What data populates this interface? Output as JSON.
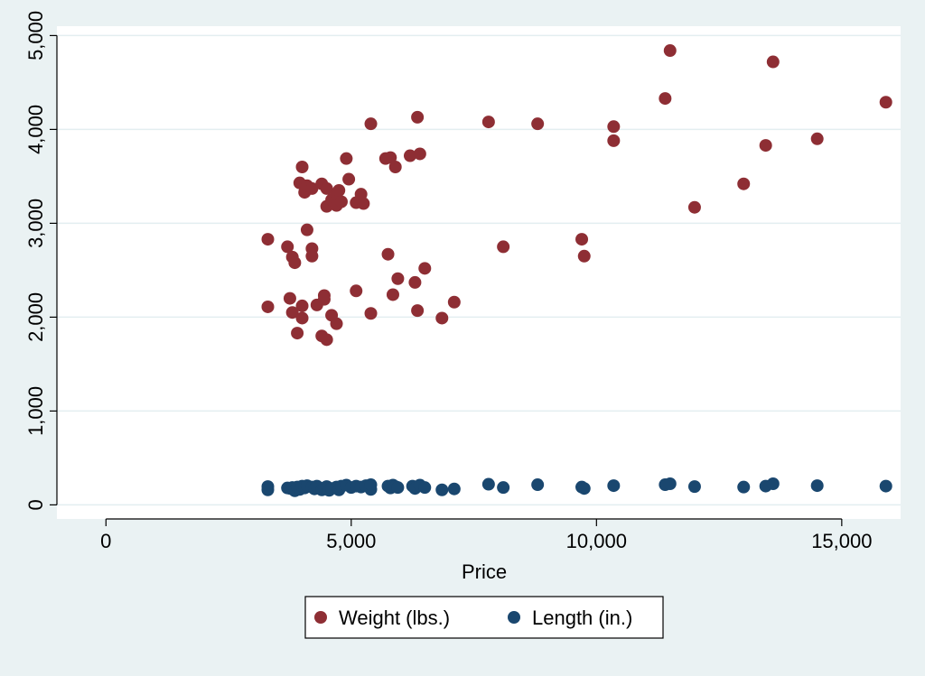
{
  "chart_data": {
    "type": "scatter",
    "title": "",
    "xlabel": "Price",
    "ylabel": "",
    "xlim": [
      -1000,
      16200
    ],
    "ylim": [
      -150,
      5100
    ],
    "x_ticks": [
      0,
      5000,
      10000,
      15000
    ],
    "x_tick_labels": [
      "0",
      "5,000",
      "10,000",
      "15,000"
    ],
    "y_ticks": [
      0,
      1000,
      2000,
      3000,
      4000,
      5000
    ],
    "y_tick_labels": [
      "0",
      "1,000",
      "2,000",
      "3,000",
      "4,000",
      "5,000"
    ],
    "grid": "horizontal",
    "legend_position": "bottom",
    "colors": {
      "background": "#eaf2f3",
      "plot_area": "#ffffff",
      "grid": "#e3eef0"
    },
    "series": [
      {
        "name": "Weight (lbs.)",
        "color": "#8e2e34",
        "points": [
          [
            3300,
            2830
          ],
          [
            3300,
            2110
          ],
          [
            3700,
            2750
          ],
          [
            3750,
            2200
          ],
          [
            3800,
            2640
          ],
          [
            3800,
            2050
          ],
          [
            3850,
            2580
          ],
          [
            3900,
            1830
          ],
          [
            3950,
            3430
          ],
          [
            4000,
            3600
          ],
          [
            4000,
            2120
          ],
          [
            4000,
            1990
          ],
          [
            4050,
            3330
          ],
          [
            4100,
            2930
          ],
          [
            4100,
            3400
          ],
          [
            4200,
            3370
          ],
          [
            4200,
            2730
          ],
          [
            4200,
            2650
          ],
          [
            4300,
            2130
          ],
          [
            4400,
            1800
          ],
          [
            4400,
            3420
          ],
          [
            4450,
            2230
          ],
          [
            4450,
            2190
          ],
          [
            4500,
            3180
          ],
          [
            4500,
            3370
          ],
          [
            4500,
            1760
          ],
          [
            4600,
            2020
          ],
          [
            4600,
            3250
          ],
          [
            4700,
            3310
          ],
          [
            4700,
            3190
          ],
          [
            4700,
            1930
          ],
          [
            4750,
            3350
          ],
          [
            4800,
            3230
          ],
          [
            4900,
            3690
          ],
          [
            4950,
            3470
          ],
          [
            5100,
            2280
          ],
          [
            5100,
            3220
          ],
          [
            5200,
            3310
          ],
          [
            5250,
            3210
          ],
          [
            5400,
            4060
          ],
          [
            5400,
            2040
          ],
          [
            5700,
            3690
          ],
          [
            5750,
            2670
          ],
          [
            5800,
            3700
          ],
          [
            5850,
            2240
          ],
          [
            5900,
            3600
          ],
          [
            5950,
            2410
          ],
          [
            6200,
            3720
          ],
          [
            6300,
            2370
          ],
          [
            6350,
            2070
          ],
          [
            6350,
            4130
          ],
          [
            6400,
            3740
          ],
          [
            6500,
            2520
          ],
          [
            6850,
            1990
          ],
          [
            7100,
            2160
          ],
          [
            7800,
            4080
          ],
          [
            8100,
            2750
          ],
          [
            8800,
            4060
          ],
          [
            9700,
            2830
          ],
          [
            9750,
            2650
          ],
          [
            10350,
            4030
          ],
          [
            10350,
            3880
          ],
          [
            11400,
            4330
          ],
          [
            11500,
            4840
          ],
          [
            12000,
            3170
          ],
          [
            13000,
            3420
          ],
          [
            13450,
            3830
          ],
          [
            13600,
            4720
          ],
          [
            14500,
            3900
          ],
          [
            15900,
            4290
          ]
        ]
      },
      {
        "name": "Length (in.)",
        "color": "#1a476f",
        "points": [
          [
            3300,
            195
          ],
          [
            3300,
            160
          ],
          [
            3700,
            180
          ],
          [
            3750,
            175
          ],
          [
            3800,
            185
          ],
          [
            3850,
            150
          ],
          [
            3900,
            190
          ],
          [
            3950,
            165
          ],
          [
            4000,
            200
          ],
          [
            4050,
            180
          ],
          [
            4100,
            205
          ],
          [
            4200,
            190
          ],
          [
            4250,
            170
          ],
          [
            4300,
            200
          ],
          [
            4400,
            160
          ],
          [
            4450,
            180
          ],
          [
            4500,
            195
          ],
          [
            4550,
            155
          ],
          [
            4600,
            175
          ],
          [
            4700,
            190
          ],
          [
            4750,
            160
          ],
          [
            4800,
            200
          ],
          [
            4900,
            210
          ],
          [
            5000,
            185
          ],
          [
            5100,
            200
          ],
          [
            5200,
            190
          ],
          [
            5300,
            205
          ],
          [
            5400,
            165
          ],
          [
            5400,
            215
          ],
          [
            5750,
            200
          ],
          [
            5800,
            180
          ],
          [
            5850,
            210
          ],
          [
            5900,
            195
          ],
          [
            5950,
            185
          ],
          [
            6250,
            200
          ],
          [
            6300,
            175
          ],
          [
            6400,
            210
          ],
          [
            6500,
            185
          ],
          [
            6850,
            160
          ],
          [
            7100,
            170
          ],
          [
            7800,
            220
          ],
          [
            8100,
            185
          ],
          [
            8800,
            215
          ],
          [
            9700,
            190
          ],
          [
            9750,
            175
          ],
          [
            10350,
            205
          ],
          [
            11400,
            215
          ],
          [
            11500,
            225
          ],
          [
            12000,
            195
          ],
          [
            13000,
            190
          ],
          [
            13450,
            200
          ],
          [
            13600,
            225
          ],
          [
            14500,
            205
          ],
          [
            15900,
            200
          ]
        ]
      }
    ]
  }
}
